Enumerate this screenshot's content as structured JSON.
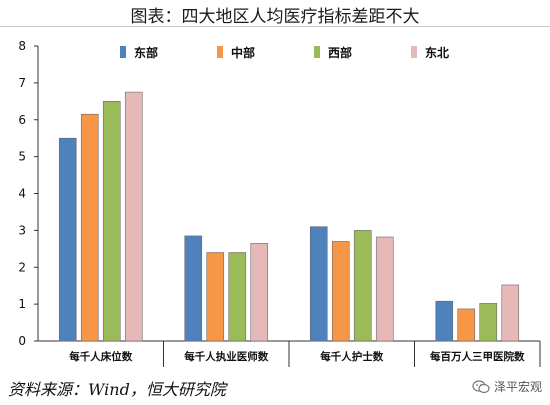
{
  "chart_data": {
    "type": "bar",
    "title": "图表：四大地区人均医疗指标差距不大",
    "categories": [
      "每千人床位数",
      "每千人执业医师数",
      "每千人护士数",
      "每百万人三甲医院数"
    ],
    "series": [
      {
        "name": "东部",
        "color": "#4f81bd",
        "values": [
          5.5,
          2.85,
          3.1,
          1.08
        ]
      },
      {
        "name": "中部",
        "color": "#f79646",
        "values": [
          6.15,
          2.4,
          2.7,
          0.87
        ]
      },
      {
        "name": "西部",
        "color": "#9bbb59",
        "values": [
          6.5,
          2.4,
          3.0,
          1.02
        ]
      },
      {
        "name": "东北",
        "color": "#e6b9b8",
        "values": [
          6.75,
          2.65,
          2.82,
          1.52
        ]
      }
    ],
    "ylim": [
      0,
      8
    ],
    "yticks": [
      "0",
      "1",
      "2",
      "3",
      "4",
      "5",
      "6",
      "7",
      "8"
    ],
    "legend_position": "top",
    "grid": false
  },
  "footer": {
    "source": "资料来源：Wind，恒大研究院",
    "brand": "泽平宏观"
  }
}
